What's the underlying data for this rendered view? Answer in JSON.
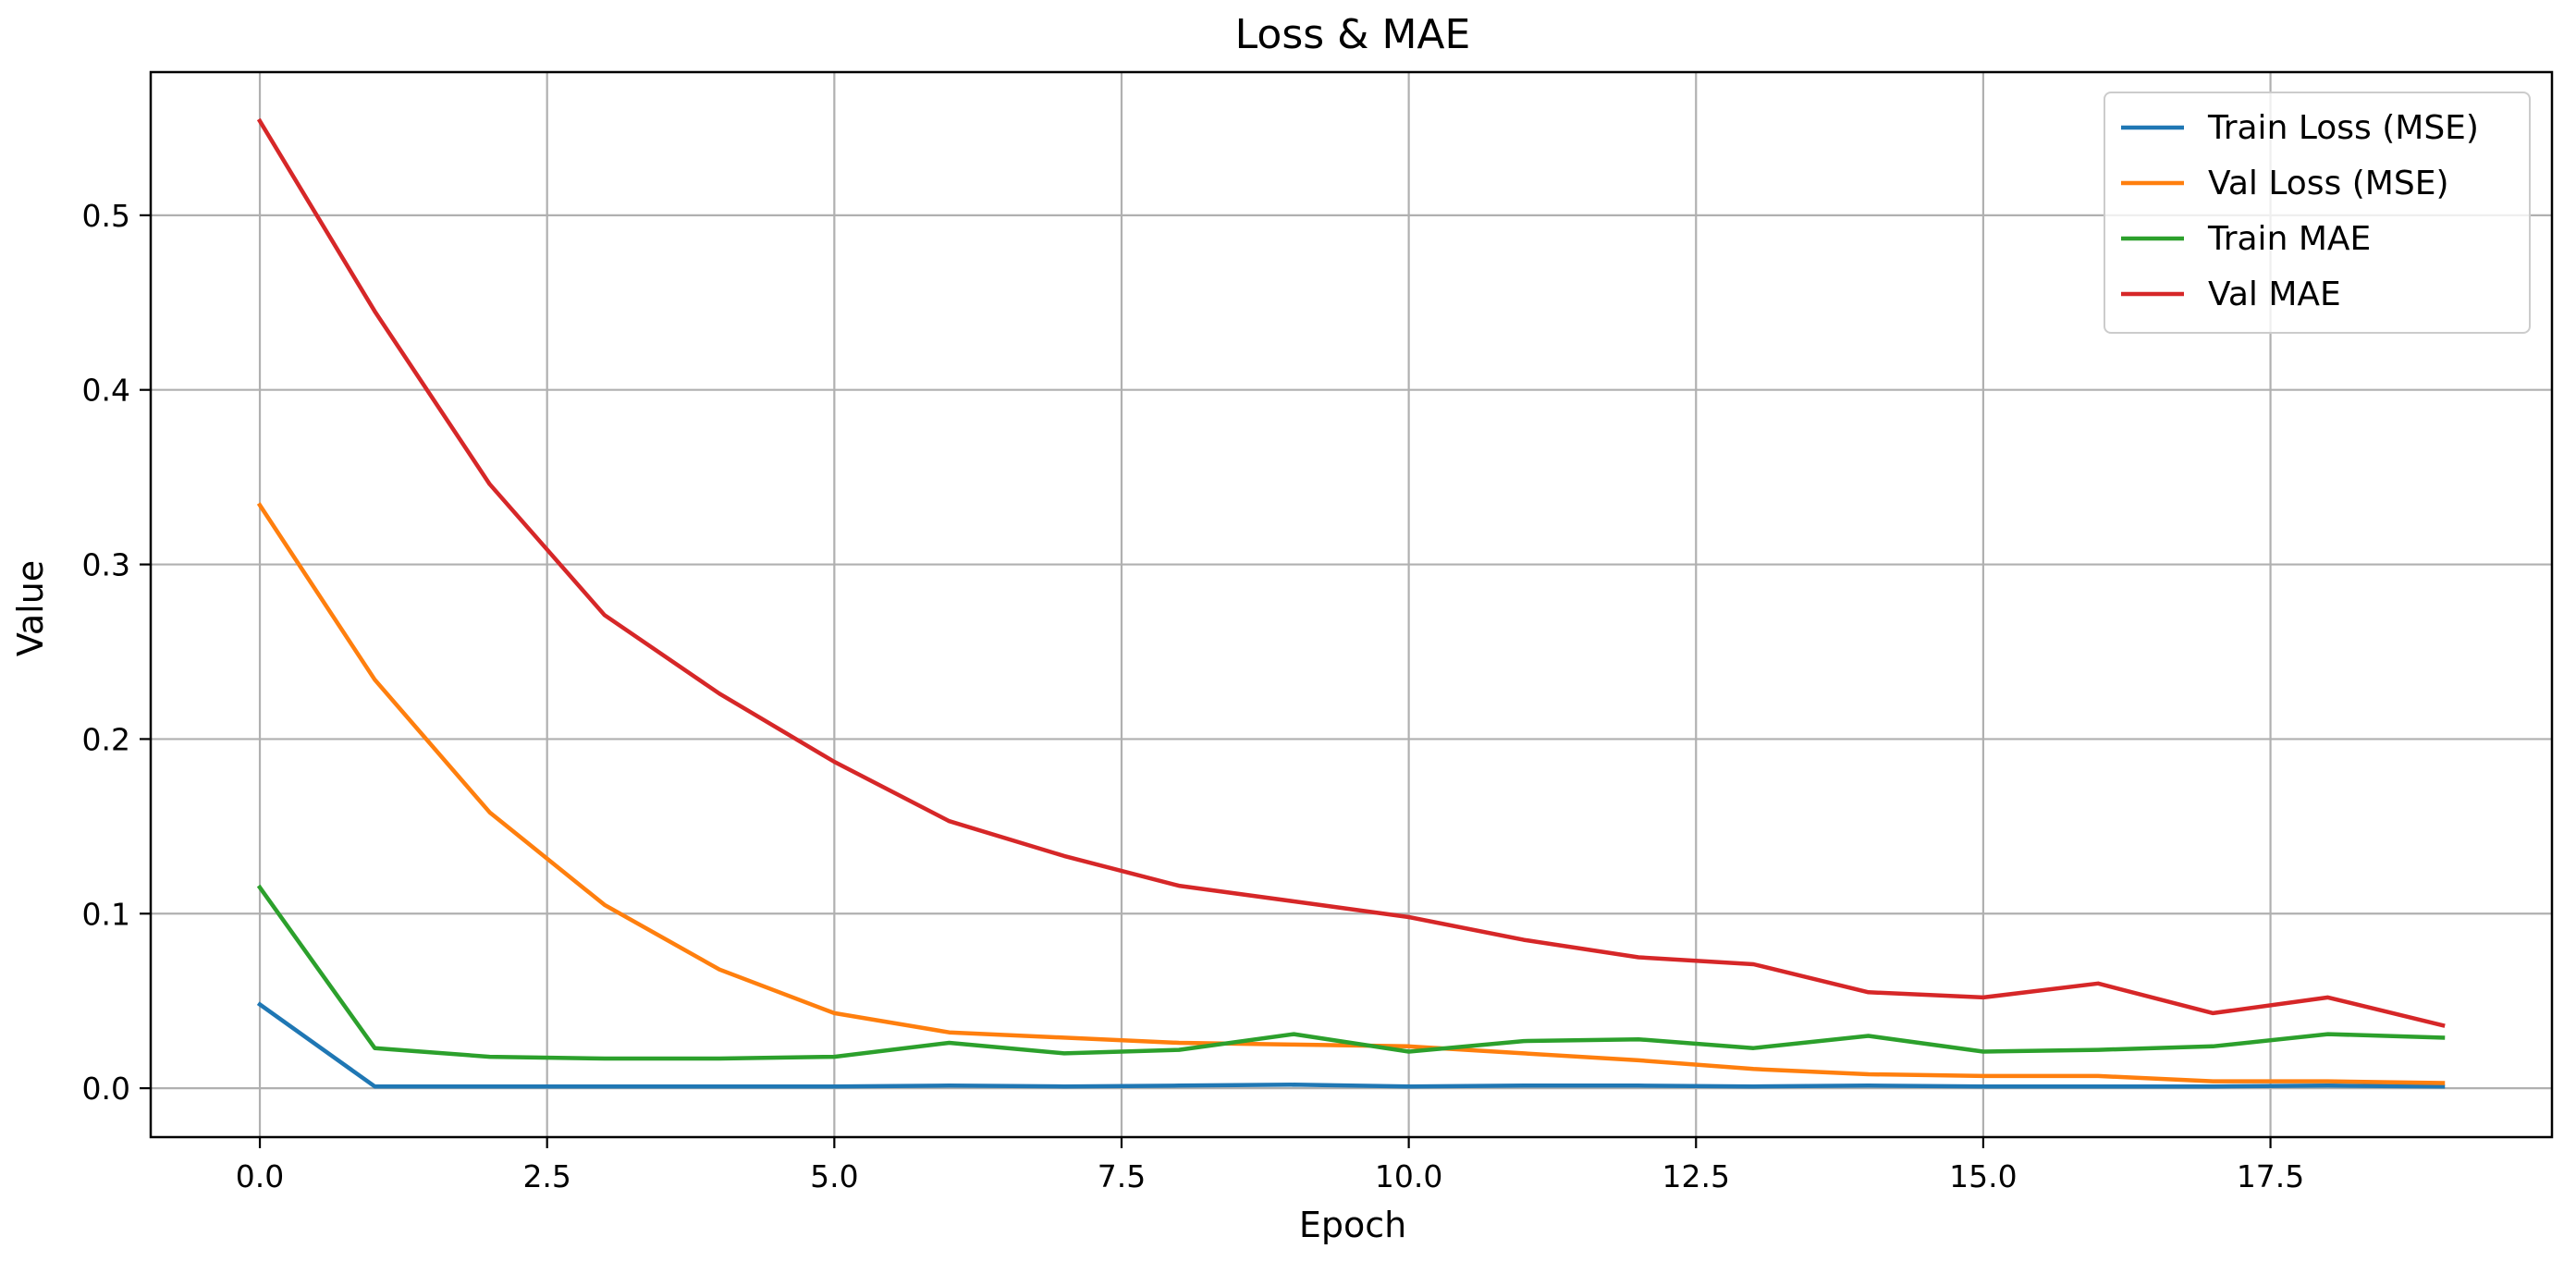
{
  "chart_data": {
    "type": "line",
    "title": "Loss & MAE",
    "xlabel": "Epoch",
    "ylabel": "Value",
    "xlim": [
      -0.95,
      19.95
    ],
    "ylim": [
      -0.028,
      0.582
    ],
    "xticks": [
      0.0,
      2.5,
      5.0,
      7.5,
      10.0,
      12.5,
      15.0,
      17.5
    ],
    "xtick_labels": [
      "0.0",
      "2.5",
      "5.0",
      "7.5",
      "10.0",
      "12.5",
      "15.0",
      "17.5"
    ],
    "yticks": [
      0.0,
      0.1,
      0.2,
      0.3,
      0.4,
      0.5
    ],
    "ytick_labels": [
      "0.0",
      "0.1",
      "0.2",
      "0.3",
      "0.4",
      "0.5"
    ],
    "grid": true,
    "legend_position": "top-right",
    "x": [
      0,
      1,
      2,
      3,
      4,
      5,
      6,
      7,
      8,
      9,
      10,
      11,
      12,
      13,
      14,
      15,
      16,
      17,
      18,
      19
    ],
    "series": [
      {
        "name": "Train Loss (MSE)",
        "color": "#1f77b4",
        "values": [
          0.048,
          0.001,
          0.001,
          0.001,
          0.001,
          0.001,
          0.0015,
          0.001,
          0.0015,
          0.002,
          0.001,
          0.0015,
          0.0015,
          0.001,
          0.0015,
          0.001,
          0.001,
          0.001,
          0.0015,
          0.001
        ]
      },
      {
        "name": "Val Loss (MSE)",
        "color": "#ff7f0e",
        "values": [
          0.334,
          0.234,
          0.158,
          0.105,
          0.068,
          0.043,
          0.032,
          0.029,
          0.026,
          0.025,
          0.024,
          0.02,
          0.016,
          0.011,
          0.008,
          0.007,
          0.007,
          0.004,
          0.004,
          0.003
        ]
      },
      {
        "name": "Train MAE",
        "color": "#2ca02c",
        "values": [
          0.115,
          0.023,
          0.018,
          0.017,
          0.017,
          0.018,
          0.026,
          0.02,
          0.022,
          0.031,
          0.021,
          0.027,
          0.028,
          0.023,
          0.03,
          0.021,
          0.022,
          0.024,
          0.031,
          0.029
        ]
      },
      {
        "name": "Val MAE",
        "color": "#d62728",
        "values": [
          0.554,
          0.445,
          0.346,
          0.271,
          0.226,
          0.187,
          0.153,
          0.133,
          0.116,
          0.107,
          0.098,
          0.085,
          0.075,
          0.071,
          0.055,
          0.052,
          0.06,
          0.043,
          0.052,
          0.036
        ]
      }
    ]
  }
}
